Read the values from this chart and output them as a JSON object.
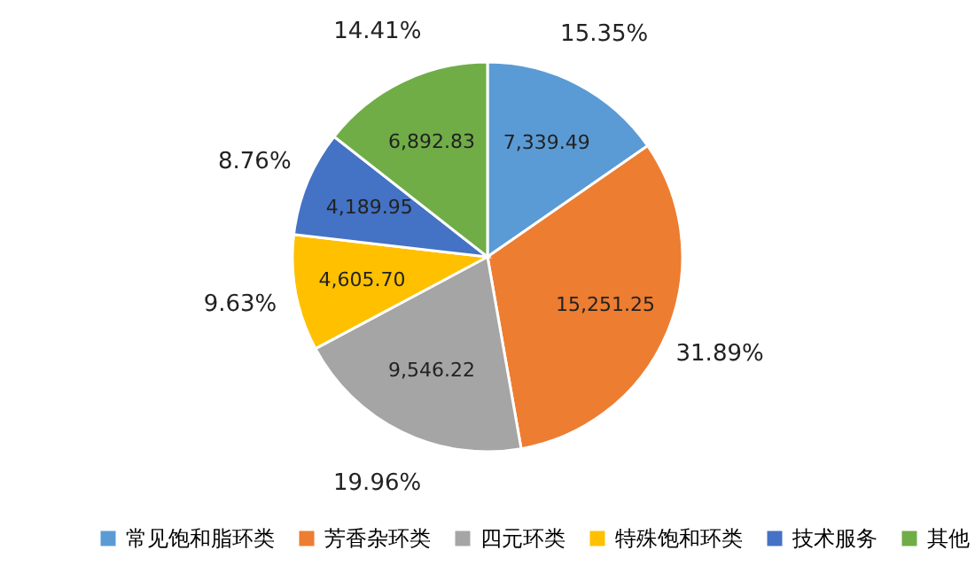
{
  "chart_data": {
    "type": "pie",
    "categories": [
      "常见饱和脂环类",
      "芳香杂环类",
      "四元环类",
      "特殊饱和环类",
      "技术服务",
      "其他"
    ],
    "values": [
      7339.49,
      15251.25,
      9546.22,
      4605.7,
      4189.95,
      6892.83
    ],
    "value_labels": [
      "7,339.49",
      "15,251.25",
      "9,546.22",
      "4,605.70",
      "4,189.95",
      "6,892.83"
    ],
    "colors": [
      "#5b9bd5",
      "#ed7d31",
      "#a5a5a5",
      "#ffc000",
      "#4472c4",
      "#70ad47"
    ],
    "annotations": [
      "15.35%",
      "31.89%",
      "19.96%",
      "9.63%",
      "8.76%",
      "14.41%"
    ],
    "legend": "bottom"
  }
}
